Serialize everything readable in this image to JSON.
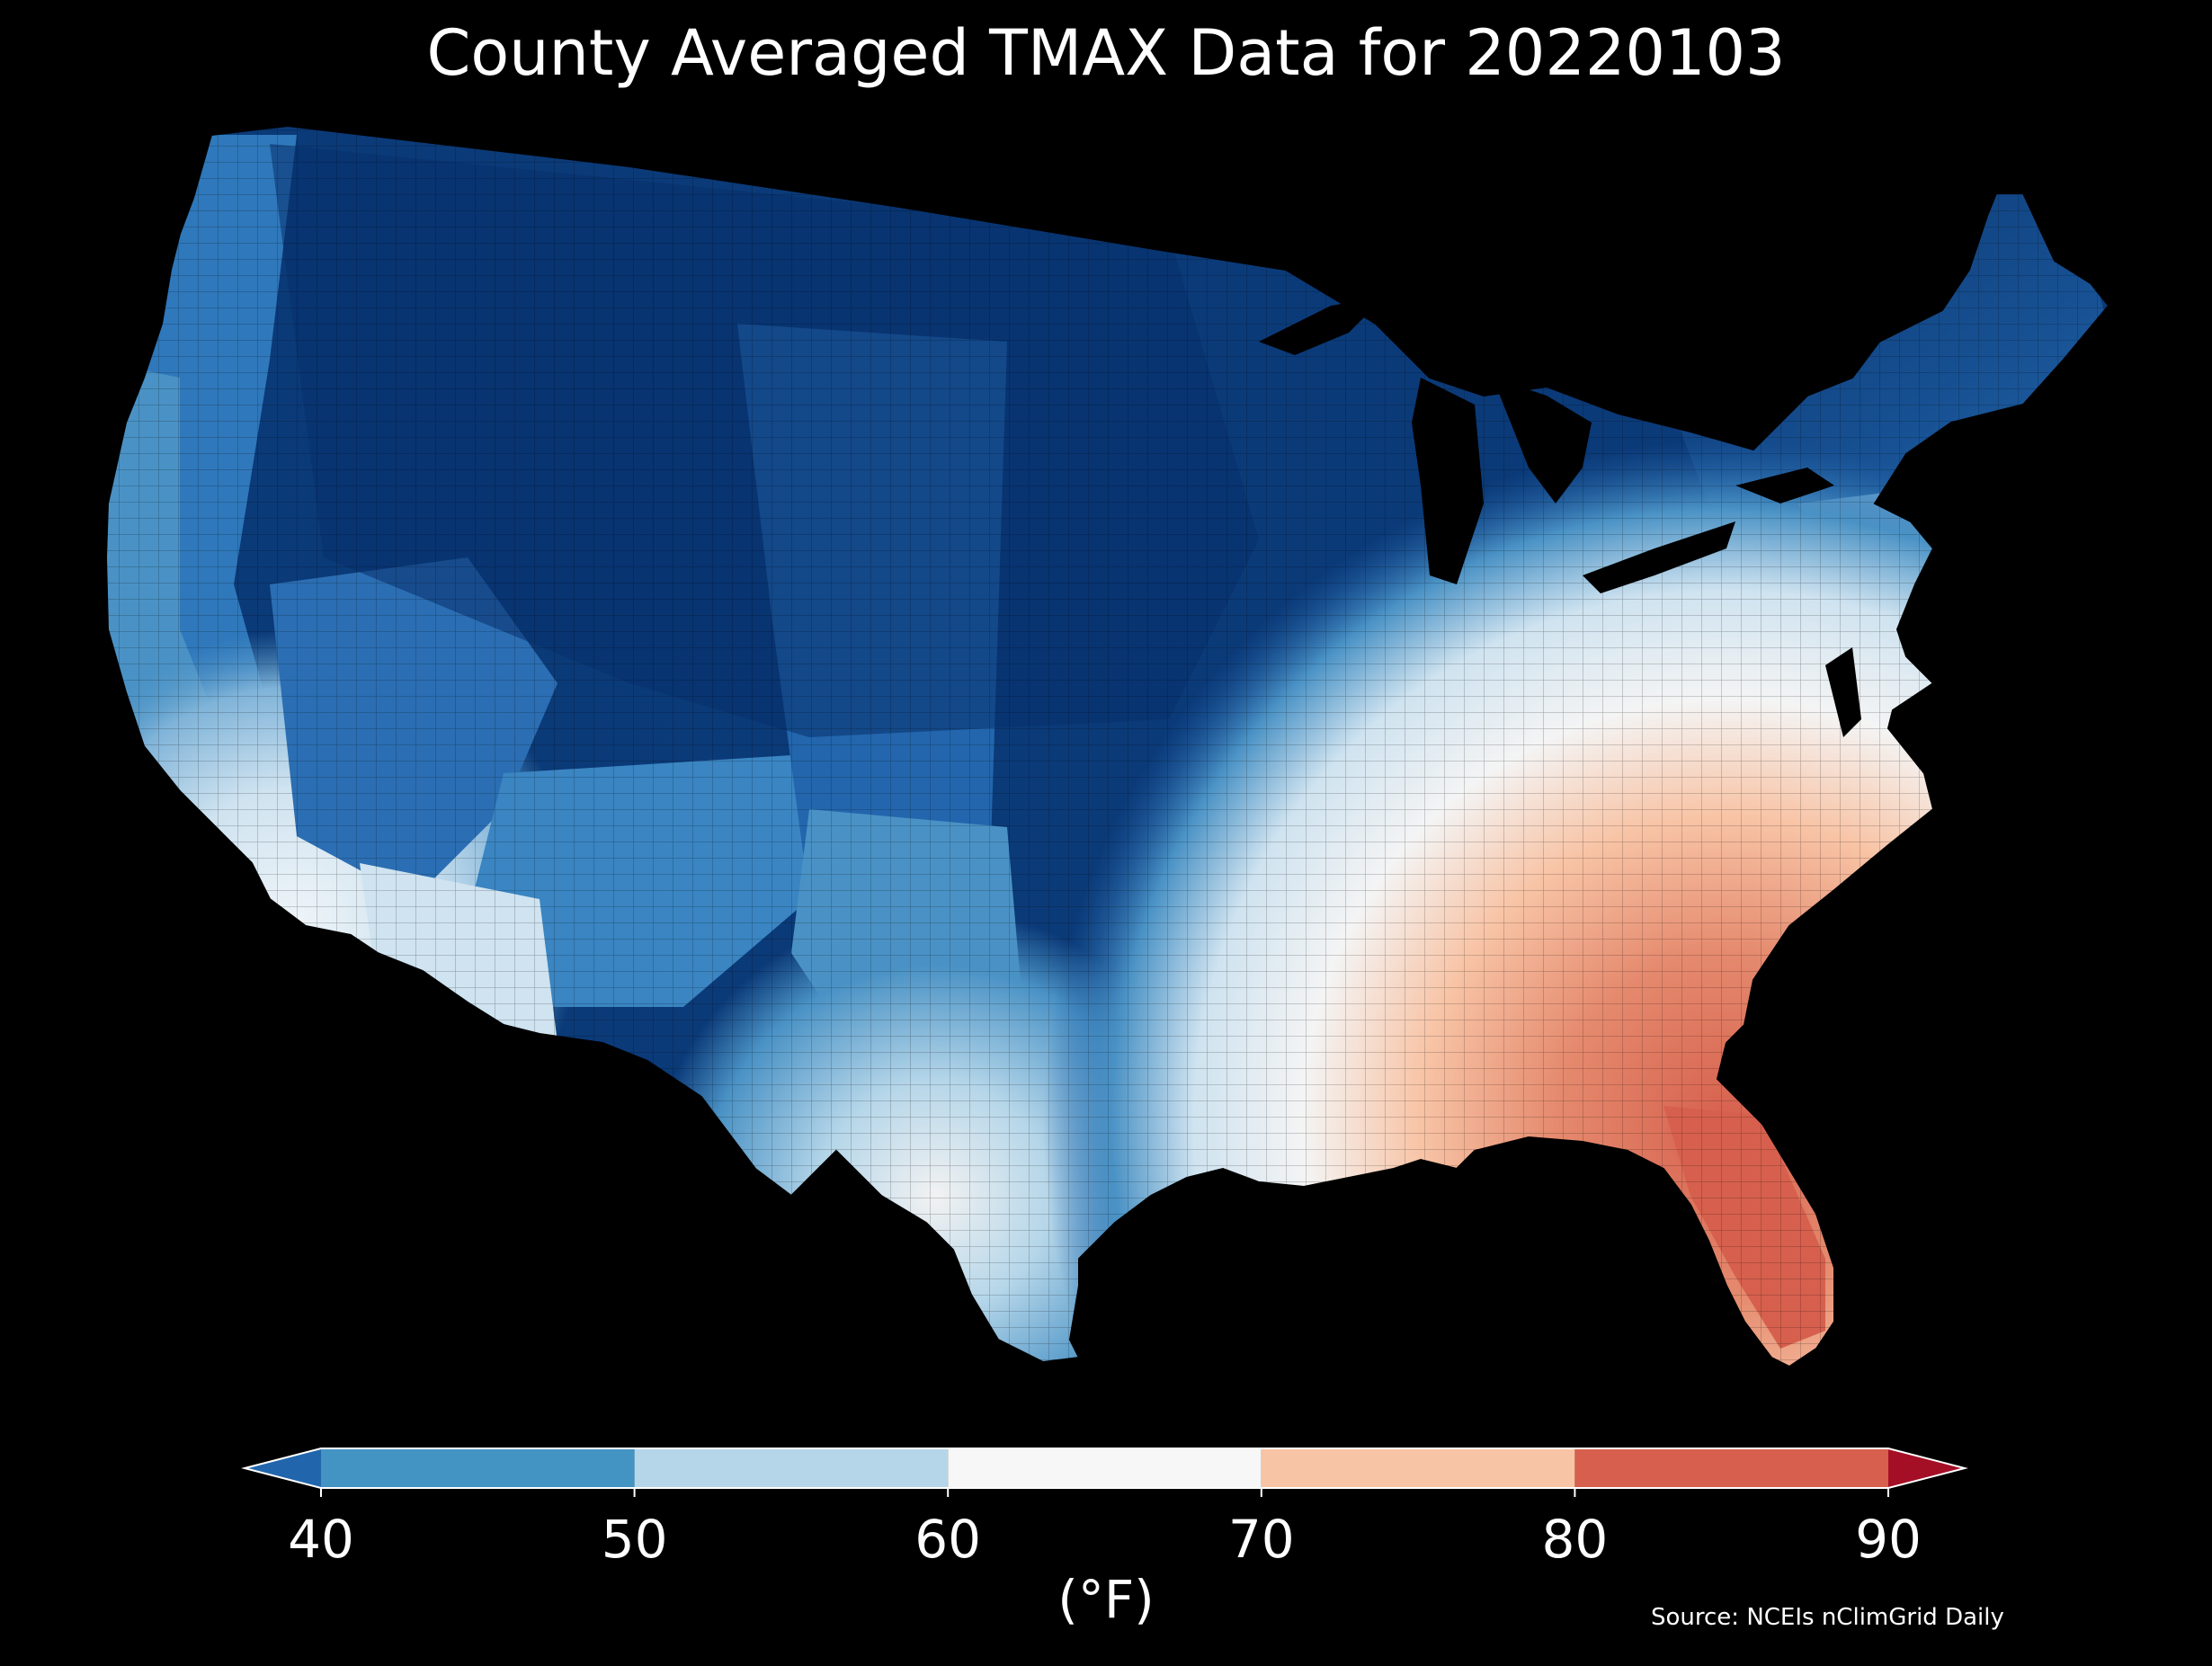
{
  "title": "County Averaged TMAX Data for 20220103",
  "colorbar": {
    "unit_label": "(°F)",
    "ticks": [
      "40",
      "50",
      "60",
      "70",
      "80",
      "90"
    ],
    "bins": [
      {
        "range": "<40",
        "color": "#2166ac"
      },
      {
        "range": "40-50",
        "color": "#4393c3"
      },
      {
        "range": "50-60",
        "color": "#b5d6e9"
      },
      {
        "range": "60-70",
        "color": "#f7f7f7"
      },
      {
        "range": "70-80",
        "color": "#f8c4a6"
      },
      {
        "range": "80-90",
        "color": "#d6604d"
      },
      {
        "range": ">90",
        "color": "#a50f26"
      }
    ]
  },
  "source": "Source: NCEIs nClimGrid Daily",
  "map": {
    "region": "contiguous United States counties",
    "colors": {
      "coldest": "#08306b",
      "cold": "#1f5fa8",
      "cool": "#4a92c5",
      "mild": "#b5d6e9",
      "neutral": "#f2f2f2",
      "warm": "#f8c4a6",
      "hot": "#d6604d",
      "background": "#000000"
    }
  }
}
